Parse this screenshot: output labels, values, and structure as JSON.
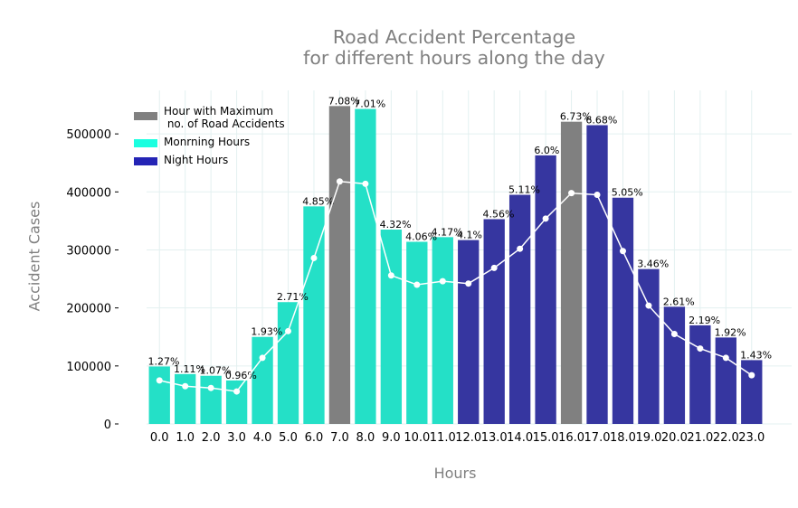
{
  "chart_data": {
    "type": "bar",
    "title_line1": "Road Accident Percentage",
    "title_line2": "for different hours along the day",
    "xlabel": "Hours",
    "ylabel": "Accident Cases",
    "categories": [
      "0.0",
      "1.0",
      "2.0",
      "3.0",
      "4.0",
      "5.0",
      "6.0",
      "7.0",
      "8.0",
      "9.0",
      "10.0",
      "11.0",
      "12.0",
      "13.0",
      "14.0",
      "15.0",
      "16.0",
      "17.0",
      "18.0",
      "19.0",
      "20.0",
      "21.0",
      "22.0",
      "23.0"
    ],
    "values": [
      99000,
      86000,
      83000,
      75000,
      150000,
      210000,
      375000,
      548000,
      543000,
      335000,
      314000,
      322000,
      317000,
      353000,
      395000,
      463000,
      521000,
      515000,
      390000,
      267000,
      202000,
      170000,
      149000,
      110000
    ],
    "bar_labels": [
      "1.27%",
      "1.11%",
      "1.07%",
      "0.96%",
      "1.93%",
      "2.71%",
      "4.85%",
      "7.08%",
      "7.01%",
      "4.32%",
      "4.06%",
      "4.17%",
      "4.1%",
      "4.56%",
      "5.11%",
      "6.0%",
      "6.73%",
      "6.68%",
      "5.05%",
      "3.46%",
      "2.61%",
      "2.19%",
      "1.92%",
      "1.43%"
    ],
    "line_values": [
      75000,
      65000,
      62000,
      56000,
      114000,
      160000,
      286000,
      418000,
      414000,
      256000,
      240000,
      246000,
      242000,
      269000,
      302000,
      354000,
      398000,
      395000,
      298000,
      204000,
      155000,
      130000,
      114000,
      84000
    ],
    "bar_groups": [
      "morning",
      "morning",
      "morning",
      "morning",
      "morning",
      "morning",
      "morning",
      "max",
      "morning",
      "morning",
      "morning",
      "morning",
      "night",
      "night",
      "night",
      "night",
      "max",
      "night",
      "night",
      "night",
      "night",
      "night",
      "night",
      "night"
    ],
    "colors": {
      "max": "#808080",
      "morning": "#24E0C7",
      "night": "#3636A0",
      "line": "#ffffff",
      "grid": "#e3f0f0",
      "legend_morning": "#1AFFE0",
      "legend_night": "#2424B5"
    },
    "legend": [
      {
        "label": "Hour with Maximum\n no. of Road Accidents",
        "group": "max"
      },
      {
        "label": "Monrning Hours",
        "group": "morning"
      },
      {
        "label": "Night Hours",
        "group": "night"
      }
    ],
    "yticks": [
      0,
      100000,
      200000,
      300000,
      400000,
      500000
    ],
    "ylim": [
      0,
      575000
    ],
    "grid": true,
    "legend_position": "upper-left"
  }
}
